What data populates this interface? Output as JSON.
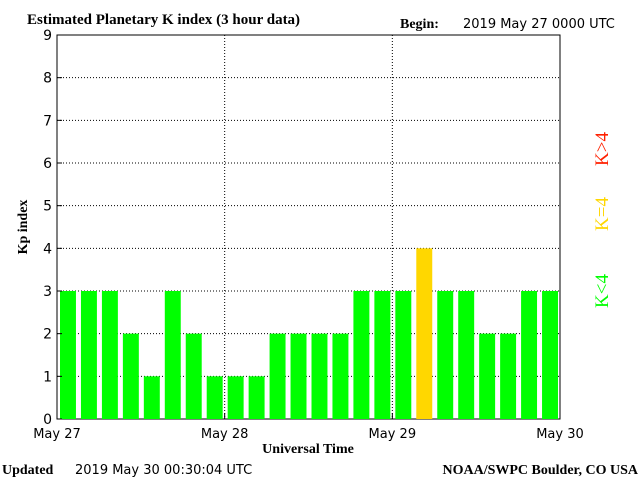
{
  "header": {
    "title": "Estimated Planetary K index (3 hour data)",
    "begin_label": "Begin:",
    "begin_value": "2019 May 27 0000 UTC"
  },
  "footer": {
    "updated_label": "Updated",
    "updated_value": "2019 May 30 00:30:04 UTC",
    "source": "NOAA/SWPC Boulder, CO USA"
  },
  "legend": {
    "items": [
      {
        "label": "K<4",
        "color": "#00ff00"
      },
      {
        "label": "K=4",
        "color": "#ffd700"
      },
      {
        "label": "K>4",
        "color": "#ff2000"
      }
    ]
  },
  "colors": {
    "low": "#00ff00",
    "moderate": "#ffd700",
    "high": "#ff2000"
  },
  "chart_data": {
    "type": "bar",
    "title": "Estimated Planetary K index (3 hour data)",
    "xlabel": "Universal Time",
    "ylabel": "Kp index",
    "ylim": [
      0,
      9
    ],
    "yticks": [
      0,
      1,
      2,
      3,
      4,
      5,
      6,
      7,
      8,
      9
    ],
    "x_tick_labels": [
      "May 27",
      "May 28",
      "May 29",
      "May 30"
    ],
    "interval_hours": 3,
    "grid": true,
    "values": [
      3,
      3,
      3,
      2,
      1,
      3,
      2,
      1,
      1,
      1,
      2,
      2,
      2,
      2,
      3,
      3,
      3,
      4,
      3,
      3,
      2,
      2,
      3,
      3
    ]
  }
}
